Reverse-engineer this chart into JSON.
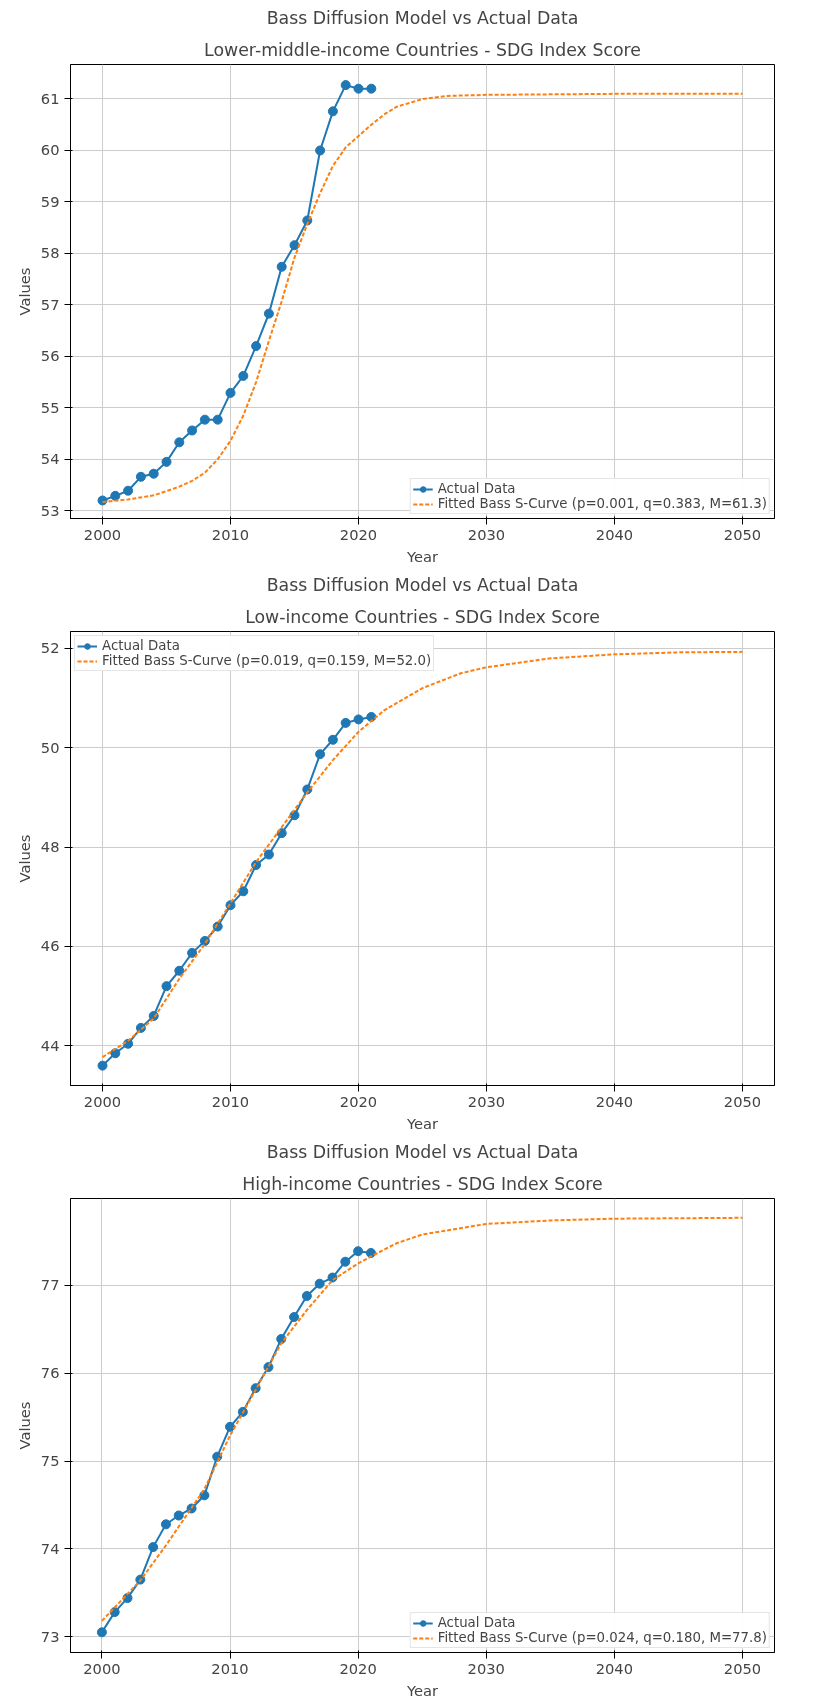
{
  "chart_data": [
    {
      "type": "line",
      "title": "Bass Diffusion Model vs Actual Data",
      "subtitle": "Lower-middle-income Countries - SDG Index Score",
      "xlabel": "Year",
      "ylabel": "Values",
      "xlim": [
        1997.5,
        2052.5
      ],
      "ylim": [
        52.85,
        61.67
      ],
      "xticks": [
        2000,
        2010,
        2020,
        2030,
        2040,
        2050
      ],
      "yticks": [
        53,
        54,
        55,
        56,
        57,
        58,
        59,
        60,
        61
      ],
      "grid": true,
      "legend": "bottom right",
      "series": [
        {
          "name": "Actual Data",
          "color": "#1f77b4",
          "marker": "circle",
          "line_style": "solid",
          "x": [
            2000,
            2001,
            2002,
            2003,
            2004,
            2005,
            2006,
            2007,
            2008,
            2009,
            2010,
            2011,
            2012,
            2013,
            2014,
            2015,
            2016,
            2017,
            2018,
            2019,
            2020,
            2021
          ],
          "values": [
            53.2,
            53.29,
            53.39,
            53.66,
            53.72,
            53.95,
            54.33,
            54.56,
            54.77,
            54.77,
            55.29,
            55.62,
            56.2,
            56.83,
            57.74,
            58.16,
            58.64,
            60.0,
            60.76,
            61.27,
            61.2,
            61.2
          ]
        },
        {
          "name": "Fitted Bass S-Curve (p=0.001, q=0.383, M=61.3)",
          "color": "#ff7f0e",
          "marker": "none",
          "line_style": "dashed",
          "x": [
            2000,
            2002,
            2004,
            2005,
            2006,
            2007,
            2008,
            2009,
            2010,
            2011,
            2012,
            2013,
            2014,
            2015,
            2016,
            2017,
            2018,
            2019,
            2020,
            2021,
            2022,
            2023,
            2025,
            2027,
            2030,
            2040,
            2050
          ],
          "values": [
            53.17,
            53.22,
            53.3,
            53.38,
            53.47,
            53.58,
            53.74,
            54.0,
            54.36,
            54.85,
            55.5,
            56.3,
            57.07,
            57.92,
            58.57,
            59.17,
            59.7,
            60.06,
            60.28,
            60.5,
            60.7,
            60.85,
            61.0,
            61.06,
            61.08,
            61.1,
            61.1
          ]
        }
      ]
    },
    {
      "type": "line",
      "title": "Bass Diffusion Model vs Actual Data",
      "subtitle": "Low-income Countries - SDG Index Score",
      "xlabel": "Year",
      "ylabel": "Values",
      "xlim": [
        1997.5,
        2052.5
      ],
      "ylim": [
        43.2,
        52.34
      ],
      "xticks": [
        2000,
        2010,
        2020,
        2030,
        2040,
        2050
      ],
      "yticks": [
        44,
        46,
        48,
        50,
        52
      ],
      "grid": true,
      "legend": "top left",
      "series": [
        {
          "name": "Actual Data",
          "color": "#1f77b4",
          "marker": "circle",
          "line_style": "solid",
          "x": [
            2000,
            2001,
            2002,
            2003,
            2004,
            2005,
            2006,
            2007,
            2008,
            2009,
            2010,
            2011,
            2012,
            2013,
            2014,
            2015,
            2016,
            2017,
            2018,
            2019,
            2020,
            2021
          ],
          "values": [
            43.6,
            43.85,
            44.04,
            44.36,
            44.6,
            45.2,
            45.51,
            45.87,
            46.11,
            46.4,
            46.83,
            47.11,
            47.64,
            47.85,
            48.28,
            48.64,
            49.16,
            49.87,
            50.16,
            50.5,
            50.57,
            50.62
          ]
        },
        {
          "name": "Fitted Bass S-Curve (p=0.019, q=0.159, M=52.0)",
          "color": "#ff7f0e",
          "marker": "none",
          "line_style": "dashed",
          "x": [
            2000,
            2002,
            2004,
            2006,
            2008,
            2010,
            2012,
            2014,
            2016,
            2018,
            2020,
            2022,
            2025,
            2028,
            2030,
            2035,
            2040,
            2045,
            2050
          ],
          "values": [
            43.77,
            44.1,
            44.55,
            45.35,
            46.05,
            46.87,
            47.7,
            48.4,
            49.1,
            49.75,
            50.32,
            50.75,
            51.2,
            51.5,
            51.62,
            51.8,
            51.88,
            51.92,
            51.93
          ]
        }
      ]
    },
    {
      "type": "line",
      "title": "Bass Diffusion Model vs Actual Data",
      "subtitle": "High-income Countries - SDG Index Score",
      "xlabel": "Year",
      "ylabel": "Values",
      "xlim": [
        1997.55,
        2052.5
      ],
      "ylim": [
        72.82,
        77.99
      ],
      "xticks": [
        2000,
        2010,
        2020,
        2030,
        2040,
        2050
      ],
      "yticks": [
        73,
        74,
        75,
        76,
        77
      ],
      "grid": true,
      "legend": "bottom right",
      "series": [
        {
          "name": "Actual Data",
          "color": "#1f77b4",
          "marker": "circle",
          "line_style": "solid",
          "x": [
            2000,
            2001,
            2002,
            2003,
            2004,
            2005,
            2006,
            2007,
            2008,
            2009,
            2010,
            2011,
            2012,
            2013,
            2014,
            2015,
            2016,
            2017,
            2018,
            2019,
            2020,
            2021
          ],
          "values": [
            73.05,
            73.28,
            73.44,
            73.65,
            74.02,
            74.28,
            74.38,
            74.46,
            74.61,
            75.05,
            75.39,
            75.56,
            75.83,
            76.07,
            76.39,
            76.64,
            76.88,
            77.02,
            77.09,
            77.27,
            77.39,
            77.37
          ]
        },
        {
          "name": "Fitted Bass S-Curve (p=0.024, q=0.180, M=77.8)",
          "color": "#ff7f0e",
          "marker": "none",
          "line_style": "dashed",
          "x": [
            2000,
            2003,
            2005,
            2008,
            2010,
            2012,
            2014,
            2016,
            2018,
            2020,
            2021,
            2023,
            2025,
            2030,
            2035,
            2040,
            2050
          ],
          "values": [
            73.18,
            73.64,
            74.04,
            74.68,
            75.29,
            75.81,
            76.34,
            76.72,
            77.06,
            77.25,
            77.33,
            77.48,
            77.58,
            77.7,
            77.74,
            77.76,
            77.77
          ]
        }
      ]
    }
  ]
}
